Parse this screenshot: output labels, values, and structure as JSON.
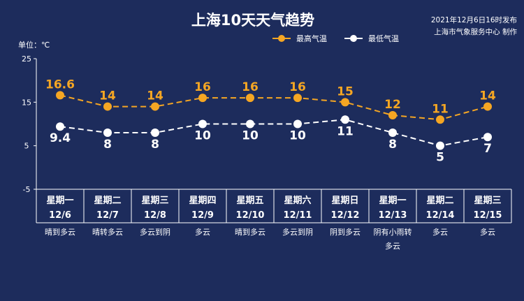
{
  "chart_data": {
    "type": "line",
    "title": "上海10天天气趋势",
    "publish_info": "2021年12月6日16时发布",
    "publisher": "上海市气象服务中心 制作",
    "unit_label": "单位：℃",
    "ylim": [
      -5,
      25
    ],
    "yticks": [
      25,
      15,
      5,
      -5
    ],
    "grid": false,
    "legend_position": "top-right",
    "days": [
      {
        "weekday": "星期一",
        "date": "12/6",
        "weather": "晴到多云"
      },
      {
        "weekday": "星期二",
        "date": "12/7",
        "weather": "晴转多云"
      },
      {
        "weekday": "星期三",
        "date": "12/8",
        "weather": "多云到阴"
      },
      {
        "weekday": "星期四",
        "date": "12/9",
        "weather": "多云"
      },
      {
        "weekday": "星期五",
        "date": "12/10",
        "weather": "晴到多云"
      },
      {
        "weekday": "星期六",
        "date": "12/11",
        "weather": "多云到阴"
      },
      {
        "weekday": "星期日",
        "date": "12/12",
        "weather": "阴到多云"
      },
      {
        "weekday": "星期一",
        "date": "12/13",
        "weather": "阴有小雨转多云"
      },
      {
        "weekday": "星期二",
        "date": "12/14",
        "weather": "多云"
      },
      {
        "weekday": "星期三",
        "date": "12/15",
        "weather": "多云"
      }
    ],
    "series": [
      {
        "name": "最高气温",
        "color": "#f5a623",
        "values": [
          16.6,
          14,
          14,
          16,
          16,
          16,
          15,
          12,
          11,
          14
        ]
      },
      {
        "name": "最低气温",
        "color": "#ffffff",
        "values": [
          9.4,
          8,
          8,
          10,
          10,
          10,
          11,
          8,
          5,
          7
        ]
      }
    ]
  }
}
